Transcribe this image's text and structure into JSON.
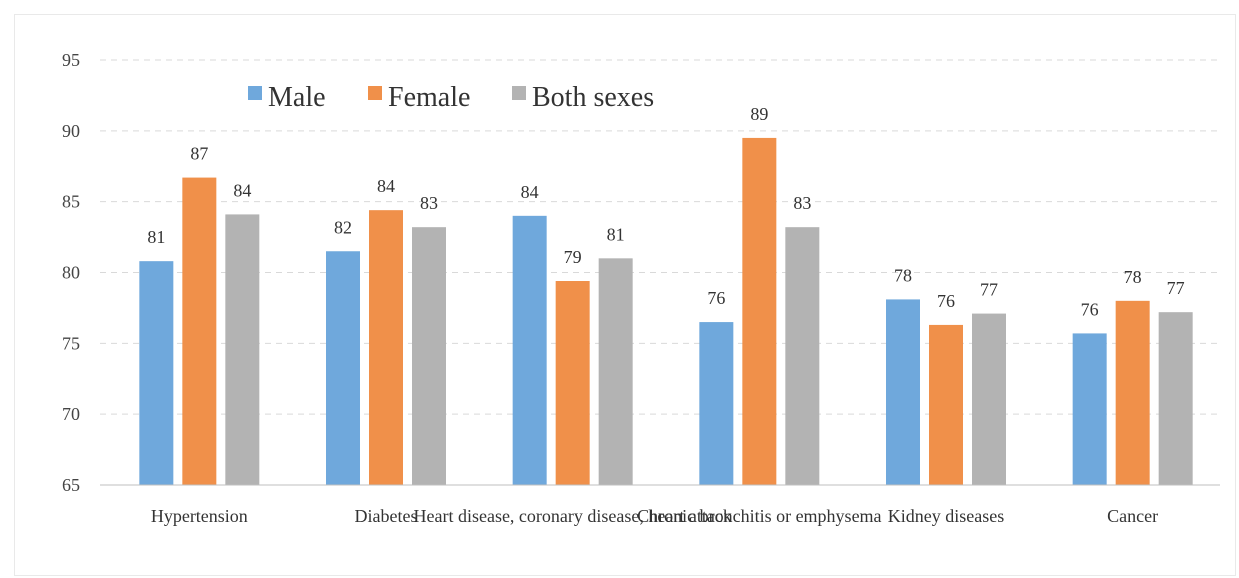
{
  "chart_data": {
    "type": "bar",
    "categories": [
      "Hypertension",
      "Diabetes",
      "Heart disease, coronary disease, heart attack",
      "Chronic bronchitis or emphysema",
      "Kidney diseases",
      "Cancer"
    ],
    "category_labels_shown": [
      "Hypertension",
      "Diabetes",
      "Heart disease, coronary disease, heart attack",
      "Chronic bronchitis or emphysema",
      "Kidney diseases",
      "Cancer"
    ],
    "series": [
      {
        "name": "Male",
        "color": "#6fa8dc",
        "values": [
          80.8,
          81.5,
          84.0,
          76.5,
          78.1,
          75.7
        ],
        "labels": [
          "81",
          "82",
          "84",
          "76",
          "78",
          "76"
        ]
      },
      {
        "name": "Female",
        "color": "#f0904a",
        "values": [
          86.7,
          84.4,
          79.4,
          89.5,
          76.3,
          78.0
        ],
        "labels": [
          "87",
          "84",
          "79",
          "89",
          "76",
          "78"
        ]
      },
      {
        "name": "Both sexes",
        "color": "#b3b3b3",
        "values": [
          84.1,
          83.2,
          81.0,
          83.2,
          77.1,
          77.2
        ],
        "labels": [
          "84",
          "83",
          "81",
          "83",
          "77",
          "77"
        ]
      }
    ],
    "yticks": [
      "65",
      "70",
      "75",
      "80",
      "85",
      "90",
      "95"
    ],
    "ylim": [
      65,
      95
    ],
    "grid": true,
    "legend_position": "top-left"
  }
}
